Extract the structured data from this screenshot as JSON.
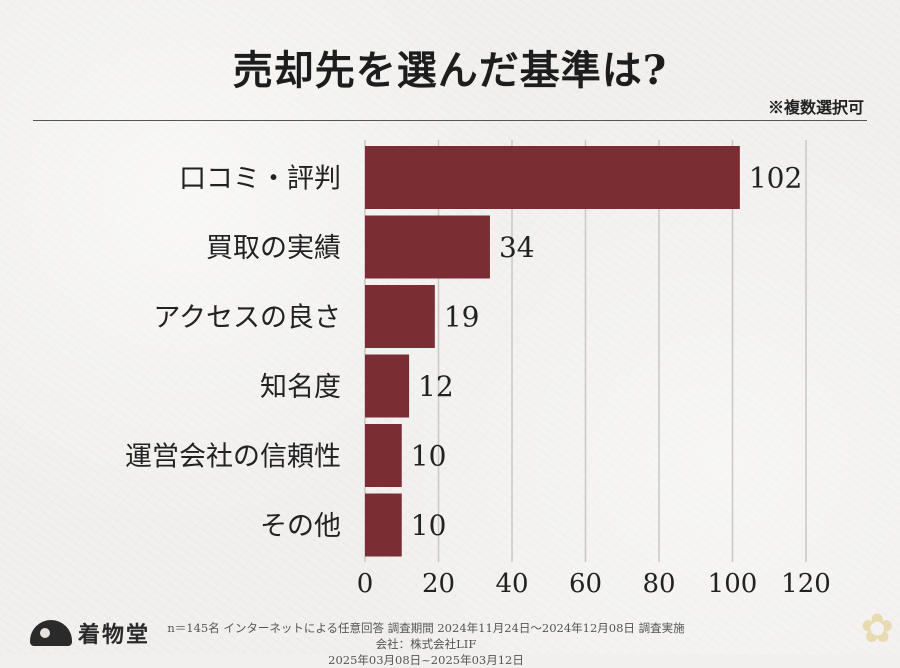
{
  "chart_data": {
    "type": "bar",
    "orientation": "horizontal",
    "title": "売却先を選んだ基準は?",
    "note": "※複数選択可",
    "categories": [
      "口コミ・評判",
      "買取の実績",
      "アクセスの良さ",
      "知名度",
      "運営会社の信頼性",
      "その他"
    ],
    "values": [
      102,
      34,
      19,
      12,
      10,
      10
    ],
    "xticks": [
      "0",
      "20",
      "40",
      "60",
      "80",
      "100",
      "120"
    ],
    "xlim": [
      0,
      120
    ],
    "bar_color": "#7a2e33",
    "grid": true
  },
  "footer": {
    "survey_line1": "n＝145名 インターネットによる任意回答 調査期間 2024年11月24日～2024年12月08日 調査実施会社：株式会社LIF",
    "survey_line2": "2025年03月08日~2025年03月12日",
    "logo_text": "着物堂"
  },
  "decor": {
    "corner_icon": "asanoha-flower-icon"
  }
}
